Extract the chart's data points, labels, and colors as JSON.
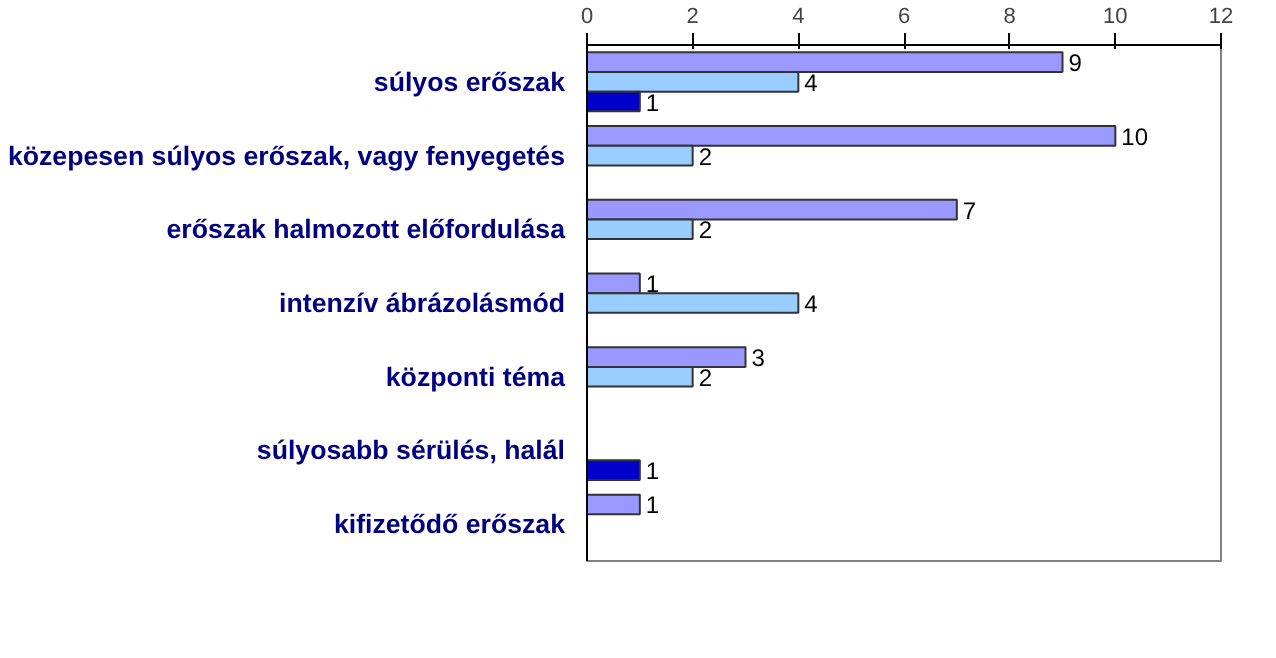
{
  "chart_data": {
    "type": "bar",
    "orientation": "horizontal",
    "categories": [
      "súlyos erőszak",
      "közepesen súlyos erőszak, vagy fenyegetés",
      "erőszak halmozott előfordulása",
      "intenzív ábrázolásmód",
      "központi téma",
      "súlyosabb sérülés, halál",
      "kifizetődő erőszak"
    ],
    "series": [
      {
        "color": "#9999ff",
        "values": [
          9,
          10,
          7,
          1,
          3,
          null,
          1
        ]
      },
      {
        "color": "#99ccff",
        "values": [
          4,
          2,
          2,
          4,
          2,
          null,
          null
        ]
      },
      {
        "color": "#0000cc",
        "values": [
          1,
          null,
          null,
          null,
          null,
          1,
          null
        ]
      }
    ],
    "xlim": [
      0,
      12
    ],
    "xticks": [
      0,
      2,
      4,
      6,
      8,
      10,
      12
    ],
    "data_labels": true,
    "grid": false
  }
}
